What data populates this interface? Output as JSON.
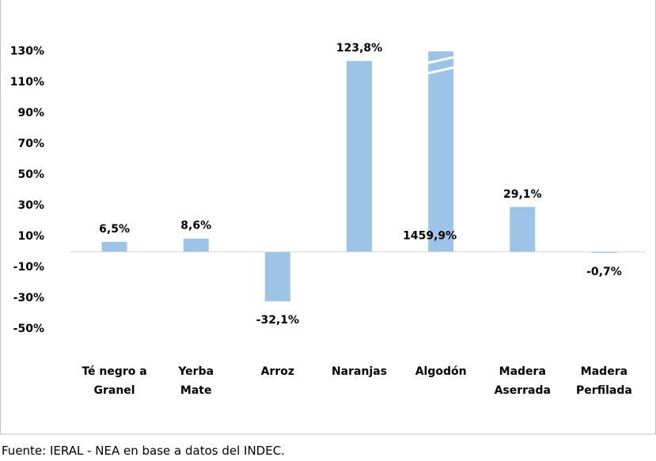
{
  "chart_data": {
    "type": "bar",
    "categories": [
      "Té negro a\nGranel",
      "Yerba\nMate",
      "Arroz",
      "Naranjas",
      "Algodón",
      "Madera\nAserrada",
      "Madera\nPerfilada"
    ],
    "values": [
      6.5,
      8.6,
      -32.1,
      123.8,
      1459.9,
      29.1,
      -0.7
    ],
    "value_labels": [
      "6,5%",
      "8,6%",
      "-32,1%",
      "123,8%",
      "1459,9%",
      "29,1%",
      "-0,7%"
    ],
    "color": "#9dc3e6",
    "ylim": [
      -60,
      130
    ],
    "yticks": [
      {
        "value": -50,
        "label": "-50%"
      },
      {
        "value": -30,
        "label": "-30%"
      },
      {
        "value": -10,
        "label": "-10%"
      },
      {
        "value": 10,
        "label": "10%"
      },
      {
        "value": 30,
        "label": "30%"
      },
      {
        "value": 50,
        "label": "50%"
      },
      {
        "value": 70,
        "label": "70%"
      },
      {
        "value": 90,
        "label": "90%"
      },
      {
        "value": 110,
        "label": "110%"
      },
      {
        "value": 130,
        "label": "130%"
      }
    ],
    "grid": false,
    "source": "Fuente: IERAL - NEA en base a datos del INDEC."
  }
}
